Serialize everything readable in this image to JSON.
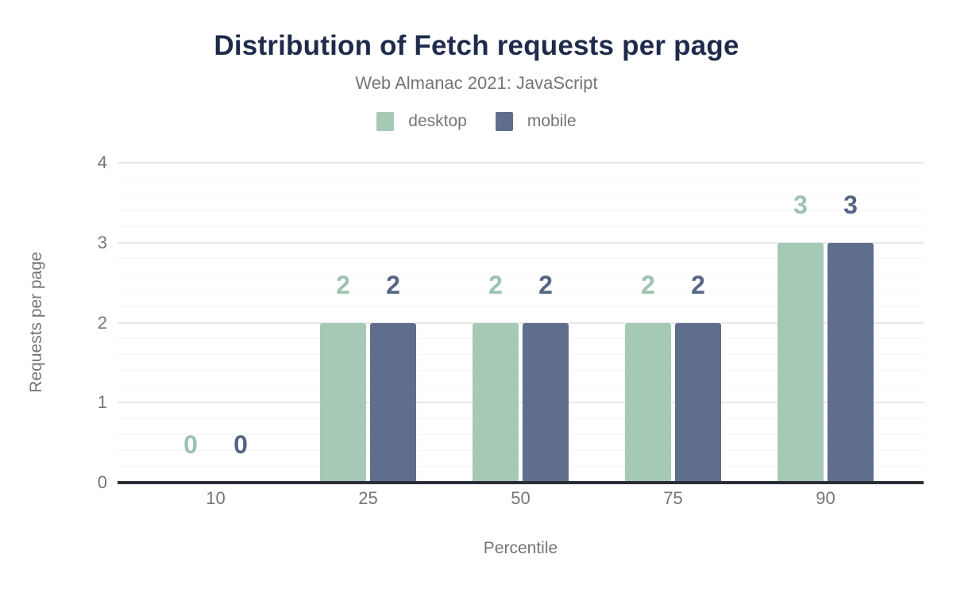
{
  "theme": {
    "bg": "#ffffff",
    "title-color": "#1e2b4a",
    "muted-color": "#757575",
    "axis-line-color": "#2b2e36",
    "grid-major": "#e8e8e8",
    "grid-minor": "#f6f6f6"
  },
  "chart_data": {
    "type": "bar",
    "title": "Distribution of Fetch requests per page",
    "subtitle": "Web Almanac 2021: JavaScript",
    "xlabel": "Percentile",
    "ylabel": "Requests per page",
    "categories": [
      "10",
      "25",
      "50",
      "75",
      "90"
    ],
    "series": [
      {
        "name": "desktop",
        "color": "#a6c9b6",
        "label_color": "#9dc3b0",
        "values": [
          0,
          2,
          2,
          2,
          3
        ]
      },
      {
        "name": "mobile",
        "color": "#5f6e8c",
        "label_color": "#566583",
        "values": [
          0,
          2,
          2,
          2,
          3
        ]
      }
    ],
    "ylim": [
      0,
      4
    ],
    "yticks": [
      0,
      1,
      2,
      3,
      4
    ],
    "grid": {
      "minor_step": 0.2,
      "major_step": 1,
      "grid_on": true
    },
    "legend_position": "top"
  }
}
